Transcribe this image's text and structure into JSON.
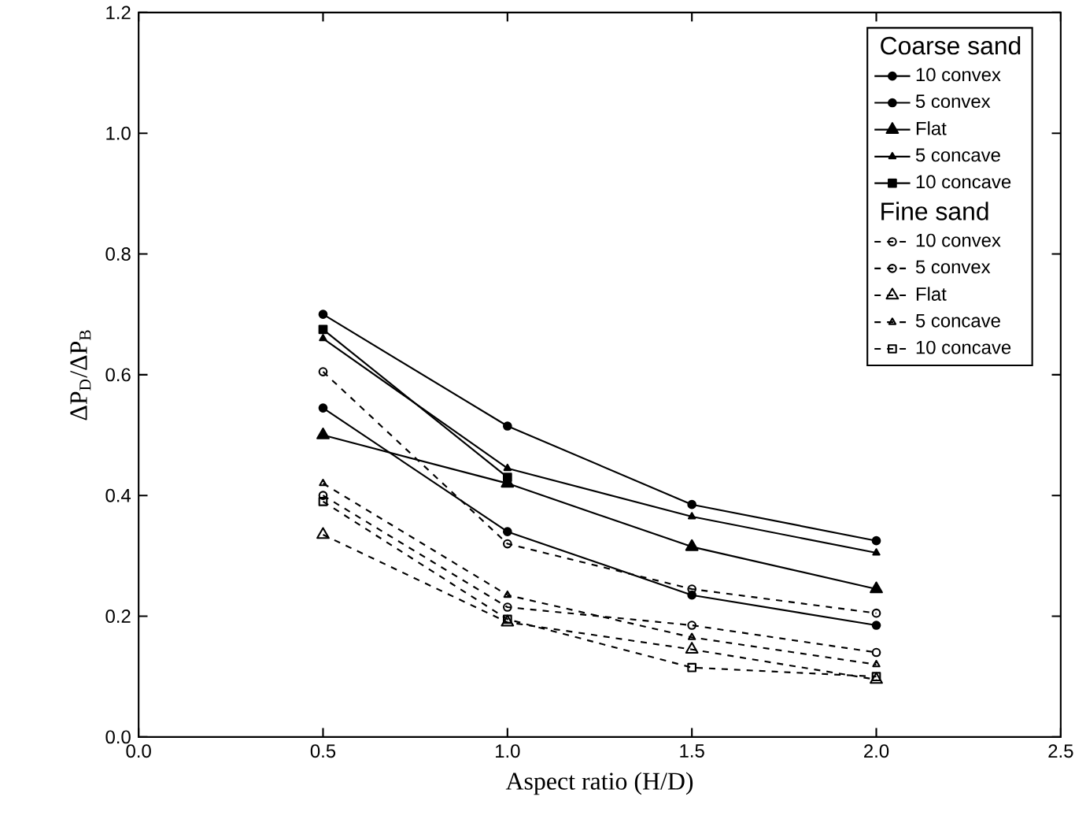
{
  "chart_data": {
    "type": "line",
    "xlabel": "Aspect ratio (H/D)",
    "ylabel": "ΔP$_{D}$/ΔP$_{B}$",
    "x": [
      0.5,
      1.0,
      1.5,
      2.0
    ],
    "xlim": [
      0,
      2.5
    ],
    "ylim": [
      0,
      1.2
    ],
    "xticks": [
      {
        "value": 0,
        "label": "0.0"
      },
      0.5,
      {
        "value": 1,
        "label": "1.0"
      },
      1.5,
      {
        "value": 2,
        "label": "2.0"
      },
      2.5
    ],
    "yticks": [
      {
        "value": 0,
        "label": "0.0"
      },
      0.2,
      0.4,
      0.6,
      0.8,
      {
        "value": 1,
        "label": "1.0"
      },
      1.2
    ],
    "legend": "top right",
    "legend_title": "Coarse sand",
    "annotations": [
      "Fine sand"
    ],
    "grid": false,
    "series": [
      {
        "name": "10 convex",
        "color": "#000000",
        "marker": "circle",
        "line_style": "solid",
        "values": [
          0.7,
          0.515,
          0.385,
          0.325
        ]
      },
      {
        "name": "5 convex",
        "color": "#000000",
        "marker": "circle",
        "line_style": "solid",
        "values": [
          0.545,
          0.34,
          0.235,
          0.185
        ]
      },
      {
        "name": "Flat",
        "color": "#000000",
        "marker": "triangle",
        "line_style": "solid",
        "values": [
          0.5,
          0.42,
          0.315,
          0.245
        ]
      },
      {
        "name": "5 concave",
        "color": "#000000",
        "marker": "triangle",
        "line_style": "solid",
        "values": [
          0.66,
          0.445,
          0.365,
          0.305
        ]
      },
      {
        "name": "10 concave",
        "color": "#000000",
        "marker": "square",
        "line_style": "solid",
        "values": [
          0.675,
          0.43,
          null,
          null
        ]
      },
      {
        "name": "10 convex",
        "color": "#000000",
        "marker": "circle",
        "line_style": "dashed",
        "values": [
          0.4,
          0.215,
          0.185,
          0.14
        ]
      },
      {
        "name": "5 convex",
        "color": "#000000",
        "marker": "circle",
        "line_style": "dashed",
        "values": [
          0.605,
          0.32,
          0.245,
          0.205
        ]
      },
      {
        "name": "Flat",
        "color": "#000000",
        "marker": "triangle",
        "line_style": "dashed",
        "values": [
          0.335,
          0.19,
          0.145,
          0.095
        ]
      },
      {
        "name": "5 concave",
        "color": "#000000",
        "marker": "triangle",
        "line_style": "dashed",
        "values": [
          0.42,
          0.235,
          0.165,
          0.12
        ]
      },
      {
        "name": "10 concave",
        "color": "#000000",
        "marker": "square",
        "line_style": "dashed",
        "values": [
          0.39,
          0.195,
          0.115,
          0.1
        ]
      }
    ]
  }
}
